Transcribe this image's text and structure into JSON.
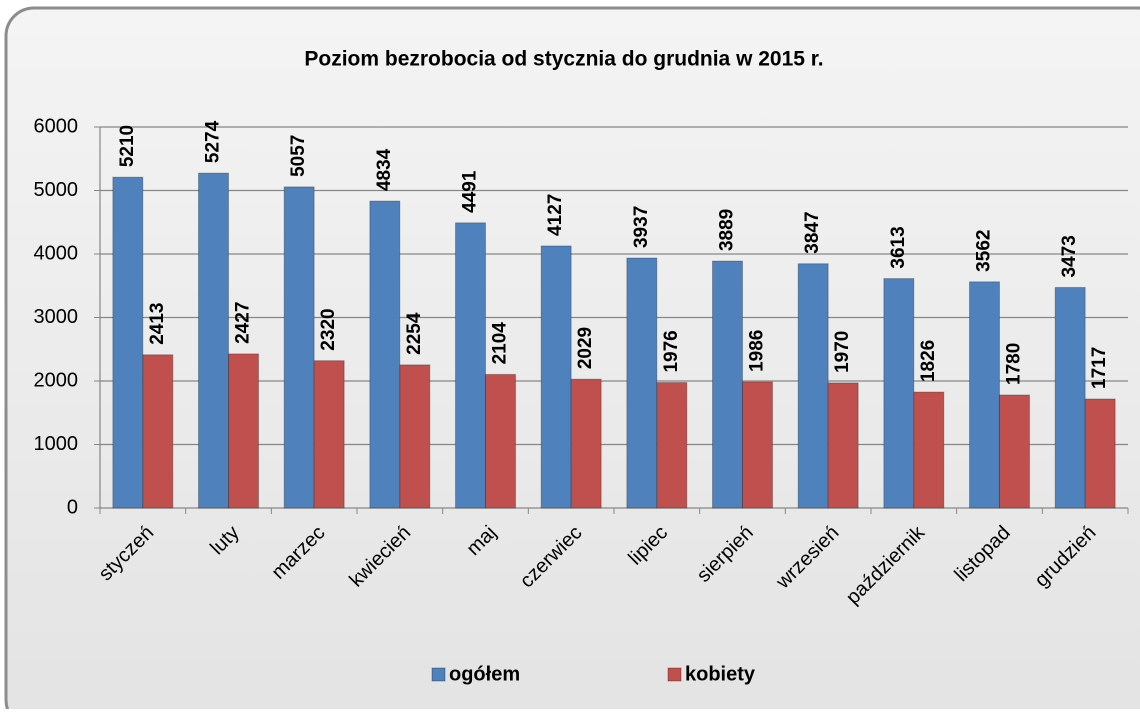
{
  "chart_data": {
    "type": "bar",
    "title": "Poziom bezrobocia od stycznia do grudnia w 2015 r.",
    "categories": [
      "styczeń",
      "luty",
      "marzec",
      "kwiecień",
      "maj",
      "czerwiec",
      "lipiec",
      "sierpień",
      "wrzesień",
      "październik",
      "listopad",
      "grudzień"
    ],
    "series": [
      {
        "name": "ogółem",
        "color": "#4f81bd",
        "values": [
          5210,
          5274,
          5057,
          4834,
          4491,
          4127,
          3937,
          3889,
          3847,
          3613,
          3562,
          3473
        ]
      },
      {
        "name": "kobiety",
        "color": "#c0504d",
        "values": [
          2413,
          2427,
          2320,
          2254,
          2104,
          2029,
          1976,
          1986,
          1970,
          1826,
          1780,
          1717
        ]
      }
    ],
    "ylim": [
      0,
      6000
    ],
    "yticks": [
      0,
      1000,
      2000,
      3000,
      4000,
      5000,
      6000
    ],
    "grid": true,
    "legend": "bottom"
  }
}
